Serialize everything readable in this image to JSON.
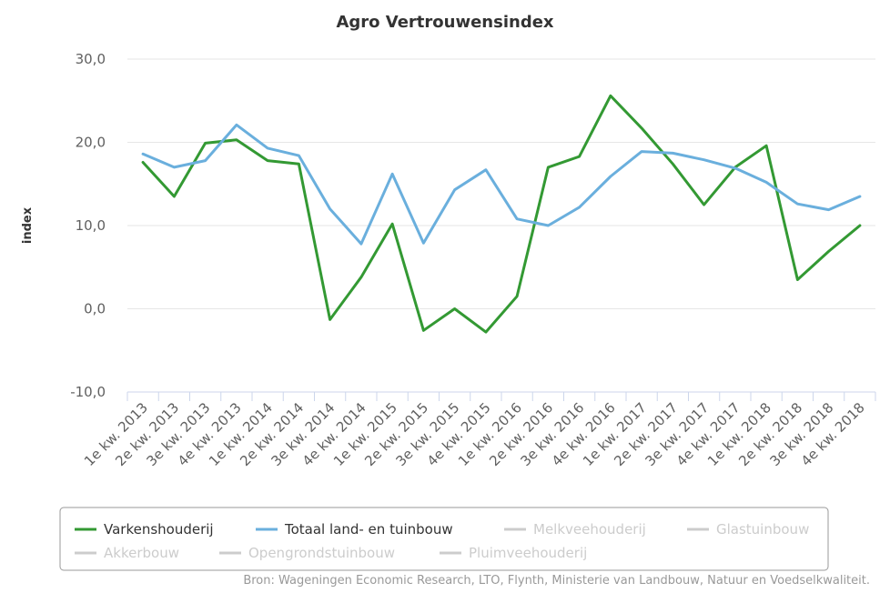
{
  "chart_data": {
    "type": "line",
    "title": "Agro Vertrouwensindex",
    "ylabel": "index",
    "ylim": [
      -10,
      30
    ],
    "yticks": [
      "30,0",
      "20,0",
      "10,0",
      "0,0",
      "-10,0"
    ],
    "grid": "horizontal",
    "categories": [
      "1e kw. 2013",
      "2e kw. 2013",
      "3e kw. 2013",
      "4e kw. 2013",
      "1e kw. 2014",
      "2e kw. 2014",
      "3e kw. 2014",
      "4e kw. 2014",
      "1e kw. 2015",
      "2e kw. 2015",
      "3e kw. 2015",
      "4e kw. 2015",
      "1e kw. 2016",
      "2e kw. 2016",
      "3e kw. 2016",
      "4e kw. 2016",
      "1e kw. 2017",
      "2e kw. 2017",
      "3e kw. 2017",
      "4e kw. 2017",
      "1e kw. 2018",
      "2e kw. 2018",
      "3e kw. 2018",
      "4e kw. 2018"
    ],
    "series": [
      {
        "name": "Varkenshouderij",
        "color": "#339933",
        "visible": true,
        "values": [
          17.6,
          13.5,
          19.9,
          20.3,
          17.8,
          17.4,
          -1.3,
          3.8,
          10.2,
          -2.6,
          0.0,
          -2.8,
          1.5,
          17.0,
          18.3,
          25.6,
          21.7,
          17.4,
          12.5,
          17.0,
          19.6,
          3.5,
          6.9,
          10.0
        ]
      },
      {
        "name": "Totaal land- en tuinbouw",
        "color": "#6aafdd",
        "visible": true,
        "values": [
          18.6,
          17.0,
          17.8,
          22.1,
          19.3,
          18.4,
          12.0,
          7.8,
          16.2,
          7.9,
          14.3,
          16.7,
          10.8,
          10.0,
          12.2,
          15.9,
          18.9,
          18.7,
          17.9,
          16.9,
          15.2,
          12.6,
          11.9,
          13.5
        ]
      },
      {
        "name": "Melkveehouderij",
        "color": "#cccccc",
        "visible": false
      },
      {
        "name": "Glastuinbouw",
        "color": "#cccccc",
        "visible": false
      },
      {
        "name": "Akkerbouw",
        "color": "#cccccc",
        "visible": false
      },
      {
        "name": "Opengrondstuinbouw",
        "color": "#cccccc",
        "visible": false
      },
      {
        "name": "Pluimveehouderij",
        "color": "#cccccc",
        "visible": false
      }
    ],
    "legend": "bottom",
    "source": "Bron: Wageningen Economic Research, LTO, Flynth, Ministerie van Landbouw, Natuur en Voedselkwaliteit."
  },
  "colors": {
    "grid": "#e6e6e6",
    "axis": "#ccd6eb",
    "legend_border": "#999999",
    "hidden_series": "#cccccc",
    "text": "#333333"
  }
}
